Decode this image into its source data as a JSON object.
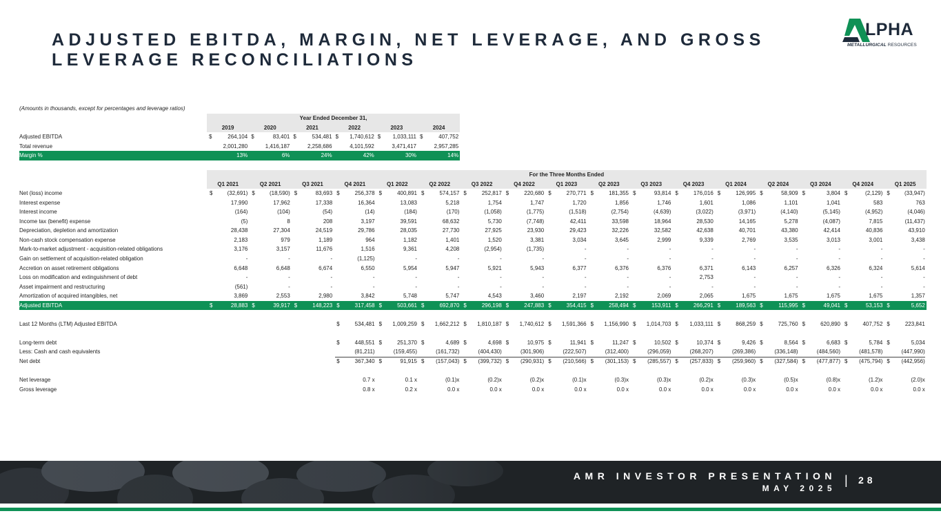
{
  "title": "ADJUSTED EBITDA, MARGIN, NET LEVERAGE, AND GROSS LEVERAGE RECONCILIATIONS",
  "logo": {
    "main": "LPHA",
    "sub_bold": "METALLURGICAL",
    "sub_rest": " RESOURCES"
  },
  "note": "(Amounts in thousands, except for percentages and leverage ratios)",
  "annual": {
    "header": "Year Ended December 31,",
    "years": [
      "2019",
      "2020",
      "2021",
      "2022",
      "2023",
      "2024"
    ],
    "rows": [
      {
        "label": "Adjusted EBITDA",
        "dollar": true,
        "values": [
          "264,104",
          "83,401",
          "534,481",
          "1,740,612",
          "1,033,111",
          "407,752"
        ]
      },
      {
        "label": "Total revenue",
        "dollar": false,
        "values": [
          "2,001,280",
          "1,416,187",
          "2,258,686",
          "4,101,592",
          "3,471,417",
          "2,957,285"
        ]
      },
      {
        "label": "Margin %",
        "dollar": false,
        "highlight": true,
        "values": [
          "13%",
          "6%",
          "24%",
          "42%",
          "30%",
          "14%"
        ]
      }
    ]
  },
  "quarterly": {
    "header": "For the Three Months Ended",
    "quarters": [
      "Q1 2021",
      "Q2 2021",
      "Q3 2021",
      "Q4 2021",
      "Q1 2022",
      "Q2 2022",
      "Q3 2022",
      "Q4 2022",
      "Q1 2023",
      "Q2 2023",
      "Q3 2023",
      "Q4 2023",
      "Q1 2024",
      "Q2 2024",
      "Q3 2024",
      "Q4 2024",
      "Q1 2025"
    ],
    "rows": [
      {
        "label": "Net (loss) income",
        "dollar": true,
        "values": [
          "(32,691)",
          "(18,590)",
          "83,693",
          "256,378",
          "400,891",
          "574,157",
          "252,817",
          "220,680",
          "270,771",
          "181,355",
          "93,814",
          "176,016",
          "126,995",
          "58,909",
          "3,804",
          "(2,129)",
          "(33,947)"
        ]
      },
      {
        "label": "Interest expense",
        "values": [
          "17,990",
          "17,962",
          "17,338",
          "16,364",
          "13,083",
          "5,218",
          "1,754",
          "1,747",
          "1,720",
          "1,856",
          "1,746",
          "1,601",
          "1,086",
          "1,101",
          "1,041",
          "583",
          "763"
        ]
      },
      {
        "label": "Interest income",
        "values": [
          "(164)",
          "(104)",
          "(54)",
          "(14)",
          "(184)",
          "(170)",
          "(1,058)",
          "(1,775)",
          "(1,518)",
          "(2,754)",
          "(4,639)",
          "(3,022)",
          "(3,971)",
          "(4,140)",
          "(5,145)",
          "(4,952)",
          "(4,046)"
        ]
      },
      {
        "label": "Income tax (benefit) expense",
        "values": [
          "(5)",
          "8",
          "208",
          "3,197",
          "39,591",
          "68,632",
          "5,730",
          "(7,748)",
          "42,411",
          "33,598",
          "18,964",
          "28,530",
          "14,165",
          "5,278",
          "(4,087)",
          "7,815",
          "(11,437)"
        ]
      },
      {
        "label": "Depreciation, depletion and amortization",
        "values": [
          "28,438",
          "27,304",
          "24,519",
          "29,786",
          "28,035",
          "27,730",
          "27,925",
          "23,930",
          "29,423",
          "32,226",
          "32,582",
          "42,638",
          "40,701",
          "43,380",
          "42,414",
          "40,836",
          "43,910"
        ]
      },
      {
        "label": "Non-cash stock compensation expense",
        "values": [
          "2,183",
          "979",
          "1,189",
          "964",
          "1,182",
          "1,401",
          "1,520",
          "3,381",
          "3,034",
          "3,645",
          "2,999",
          "9,339",
          "2,769",
          "3,535",
          "3,013",
          "3,001",
          "3,438"
        ]
      },
      {
        "label": "Mark-to-market adjustment - acquisition-related obligations",
        "values": [
          "3,176",
          "3,157",
          "11,676",
          "1,516",
          "9,361",
          "4,208",
          "(2,954)",
          "(1,735)",
          "-",
          "-",
          "-",
          "-",
          "-",
          "-",
          "-",
          "-",
          "-"
        ]
      },
      {
        "label": "Gain on settlement of acquisition-related obligation",
        "values": [
          "-",
          "-",
          "-",
          "(1,125)",
          "-",
          "-",
          "-",
          "-",
          "-",
          "-",
          "-",
          "-",
          "-",
          "-",
          "-",
          "-",
          "-"
        ]
      },
      {
        "label": "Accretion on asset retirement obligations",
        "values": [
          "6,648",
          "6,648",
          "6,674",
          "6,550",
          "5,954",
          "5,947",
          "5,921",
          "5,943",
          "6,377",
          "6,376",
          "6,376",
          "6,371",
          "6,143",
          "6,257",
          "6,326",
          "6,324",
          "5,614"
        ]
      },
      {
        "label": "Loss on modification and extinguishment of debt",
        "values": [
          "-",
          "-",
          "-",
          "-",
          "-",
          "-",
          "-",
          "-",
          "-",
          "-",
          "-",
          "2,753",
          "-",
          "-",
          "-",
          "-",
          "-"
        ]
      },
      {
        "label": "Asset impairment and restructuring",
        "values": [
          "(561)",
          "-",
          "-",
          "-",
          "-",
          "-",
          "-",
          "-",
          "-",
          "-",
          "-",
          "-",
          "-",
          "-",
          "-",
          "-",
          "-"
        ]
      },
      {
        "label": "Amortization of acquired intangibles, net",
        "values": [
          "3,869",
          "2,553",
          "2,980",
          "3,842",
          "5,748",
          "5,747",
          "4,543",
          "3,460",
          "2,197",
          "2,192",
          "2,069",
          "2,065",
          "1,675",
          "1,675",
          "1,675",
          "1,675",
          "1,357"
        ]
      },
      {
        "label": "Adjusted EBITDA",
        "dollar": true,
        "highlight": true,
        "values": [
          "28,883",
          "39,917",
          "148,223",
          "317,458",
          "503,661",
          "692,870",
          "296,198",
          "247,883",
          "354,415",
          "258,494",
          "153,911",
          "266,291",
          "189,563",
          "115,995",
          "49,041",
          "53,153",
          "5,652"
        ]
      }
    ],
    "ltm": {
      "label": "Last 12 Months (LTM) Adjusted EBITDA",
      "values": [
        "534,481",
        "1,009,259",
        "1,662,212",
        "1,810,187",
        "1,740,612",
        "1,591,366",
        "1,156,990",
        "1,014,703",
        "1,033,111",
        "868,259",
        "725,760",
        "620,890",
        "407,752",
        "223,841"
      ]
    },
    "debt": [
      {
        "label": "Long-term debt",
        "dollar": true,
        "values": [
          "448,551",
          "251,370",
          "4,689",
          "4,698",
          "10,975",
          "11,941",
          "11,247",
          "10,502",
          "10,374",
          "9,426",
          "8,564",
          "6,683",
          "5,784",
          "5,034"
        ]
      },
      {
        "label": "Less: Cash and cash equivalents",
        "values": [
          "(81,211)",
          "(159,455)",
          "(161,732)",
          "(404,430)",
          "(301,906)",
          "(222,507)",
          "(312,400)",
          "(296,059)",
          "(268,207)",
          "(269,386)",
          "(336,148)",
          "(484,560)",
          "(481,578)",
          "(447,990)"
        ]
      },
      {
        "label": "Net debt",
        "dollar": true,
        "values": [
          "367,340",
          "91,915",
          "(157,043)",
          "(399,732)",
          "(290,931)",
          "(210,566)",
          "(301,153)",
          "(285,557)",
          "(257,833)",
          "(259,960)",
          "(327,584)",
          "(477,877)",
          "(475,794)",
          "(442,956)"
        ]
      }
    ],
    "leverage": [
      {
        "label": "Net leverage",
        "values": [
          "0.7 x",
          "0.1 x",
          "(0.1)x",
          "(0.2)x",
          "(0.2)x",
          "(0.1)x",
          "(0.3)x",
          "(0.3)x",
          "(0.2)x",
          "(0.3)x",
          "(0.5)x",
          "(0.8)x",
          "(1.2)x",
          "(2.0)x"
        ]
      },
      {
        "label": "Gross leverage",
        "values": [
          "0.8 x",
          "0.2 x",
          "0.0 x",
          "0.0 x",
          "0.0 x",
          "0.0 x",
          "0.0 x",
          "0.0 x",
          "0.0 x",
          "0.0 x",
          "0.0 x",
          "0.0 x",
          "0.0 x",
          "0.0 x"
        ]
      }
    ]
  },
  "footer": {
    "title": "AMR INVESTOR PRESENTATION",
    "date": "MAY 2025",
    "page": "28"
  },
  "colors": {
    "green": "#0f9156",
    "navy": "#1e2a3a"
  }
}
